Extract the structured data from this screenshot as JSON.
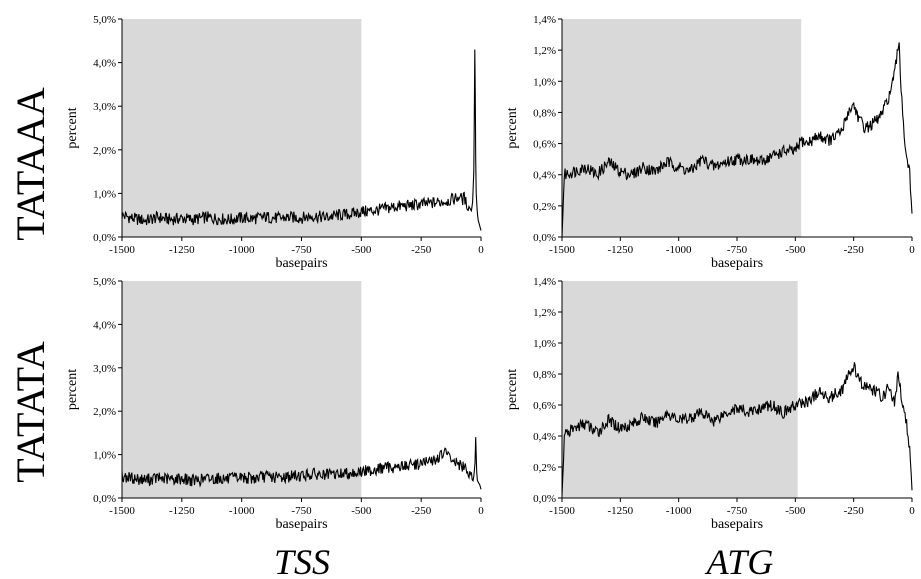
{
  "row_labels": [
    "TATAAA",
    "TATATA"
  ],
  "column_labels": [
    "TSS",
    "ATG"
  ],
  "chart_data": [
    {
      "type": "line",
      "panel": "TATAAA-TSS",
      "xlabel": "basepairs",
      "ylabel": "percent",
      "xlim": [
        -1500,
        0
      ],
      "ylim": [
        0,
        5
      ],
      "xticks": [
        -1500,
        -1250,
        -1000,
        -750,
        -500,
        -250,
        0
      ],
      "xtick_labels": [
        "-1500",
        "-1250",
        "-1000",
        "-750",
        "-500",
        "-250",
        "0"
      ],
      "yticks": [
        0,
        1,
        2,
        3,
        4,
        5
      ],
      "ytick_labels": [
        "0,0%",
        "1,0%",
        "2,0%",
        "3,0%",
        "4,0%",
        "5,0%"
      ],
      "shaded_region": [
        -1500,
        -500
      ],
      "shade_color": "#d9d9d9",
      "line_color": "#000000",
      "series": [
        {
          "values_note": "percent by position",
          "x": [
            -1500,
            -1450,
            -1400,
            -1350,
            -1300,
            -1250,
            -1200,
            -1150,
            -1100,
            -1050,
            -1000,
            -950,
            -900,
            -850,
            -800,
            -750,
            -700,
            -650,
            -600,
            -550,
            -500,
            -450,
            -400,
            -350,
            -300,
            -250,
            -200,
            -175,
            -150,
            -125,
            -100,
            -90,
            -80,
            -70,
            -60,
            -50,
            -45,
            -40,
            -35,
            -30,
            -28,
            -26,
            -24,
            -22,
            -20,
            -18,
            -16,
            -14,
            -12,
            -10,
            -5,
            0
          ],
          "y": [
            0.5,
            0.42,
            0.38,
            0.45,
            0.4,
            0.43,
            0.4,
            0.45,
            0.42,
            0.4,
            0.44,
            0.42,
            0.46,
            0.43,
            0.45,
            0.44,
            0.48,
            0.45,
            0.5,
            0.52,
            0.58,
            0.6,
            0.65,
            0.7,
            0.72,
            0.75,
            0.78,
            0.8,
            0.82,
            0.85,
            0.9,
            0.95,
            0.85,
            0.9,
            0.75,
            0.7,
            0.65,
            0.6,
            0.8,
            1.5,
            2.8,
            4.3,
            3.2,
            1.8,
            1.0,
            0.8,
            0.6,
            0.5,
            0.4,
            0.35,
            0.25,
            0.15
          ]
        }
      ]
    },
    {
      "type": "line",
      "panel": "TATAAA-ATG",
      "xlabel": "basepairs",
      "ylabel": "percent",
      "xlim": [
        -1500,
        0
      ],
      "ylim": [
        0,
        1.4
      ],
      "xticks": [
        -1500,
        -1250,
        -1000,
        -750,
        -500,
        -250,
        0
      ],
      "xtick_labels": [
        "-1500",
        "-1250",
        "-1000",
        "-750",
        "-500",
        "-250",
        "0"
      ],
      "yticks": [
        0,
        0.2,
        0.4,
        0.6,
        0.8,
        1.0,
        1.2,
        1.4
      ],
      "ytick_labels": [
        "0,0%",
        "0,2%",
        "0,4%",
        "0,6%",
        "0,8%",
        "1,0%",
        "1,2%",
        "1,4%"
      ],
      "shaded_region": [
        -1500,
        -475
      ],
      "shade_color": "#d9d9d9",
      "line_color": "#000000",
      "series": [
        {
          "x": [
            -1500,
            -1490,
            -1450,
            -1400,
            -1350,
            -1300,
            -1250,
            -1200,
            -1150,
            -1100,
            -1050,
            -1000,
            -950,
            -900,
            -850,
            -800,
            -750,
            -700,
            -650,
            -600,
            -550,
            -500,
            -475,
            -450,
            -400,
            -350,
            -300,
            -275,
            -250,
            -225,
            -200,
            -175,
            -150,
            -125,
            -100,
            -90,
            -80,
            -70,
            -60,
            -55,
            -50,
            -40,
            -30,
            -20,
            -10,
            0
          ],
          "y": [
            0.02,
            0.4,
            0.42,
            0.45,
            0.4,
            0.48,
            0.42,
            0.4,
            0.45,
            0.42,
            0.48,
            0.45,
            0.42,
            0.5,
            0.45,
            0.48,
            0.5,
            0.5,
            0.48,
            0.52,
            0.55,
            0.55,
            0.62,
            0.6,
            0.65,
            0.62,
            0.68,
            0.8,
            0.85,
            0.75,
            0.7,
            0.72,
            0.75,
            0.8,
            0.9,
            0.95,
            1.0,
            1.1,
            1.2,
            1.25,
            1.05,
            0.8,
            0.6,
            0.5,
            0.4,
            0.15
          ]
        }
      ]
    },
    {
      "type": "line",
      "panel": "TATATA-TSS",
      "xlabel": "basepairs",
      "ylabel": "percent",
      "xlim": [
        -1500,
        0
      ],
      "ylim": [
        0,
        5
      ],
      "xticks": [
        -1500,
        -1250,
        -1000,
        -750,
        -500,
        -250,
        0
      ],
      "xtick_labels": [
        "-1500",
        "-1250",
        "-1000",
        "-750",
        "-500",
        "-250",
        "0"
      ],
      "yticks": [
        0,
        1,
        2,
        3,
        4,
        5
      ],
      "ytick_labels": [
        "0,0%",
        "1,0%",
        "2,0%",
        "3,0%",
        "4,0%",
        "5,0%"
      ],
      "shaded_region": [
        -1500,
        -500
      ],
      "shade_color": "#d9d9d9",
      "line_color": "#000000",
      "series": [
        {
          "x": [
            -1500,
            -1450,
            -1400,
            -1350,
            -1300,
            -1250,
            -1200,
            -1150,
            -1100,
            -1050,
            -1000,
            -950,
            -900,
            -850,
            -800,
            -750,
            -700,
            -650,
            -600,
            -550,
            -500,
            -450,
            -400,
            -350,
            -300,
            -250,
            -200,
            -175,
            -150,
            -125,
            -100,
            -75,
            -50,
            -40,
            -30,
            -25,
            -22,
            -20,
            -18,
            -15,
            -10,
            -5,
            0
          ],
          "y": [
            0.5,
            0.45,
            0.42,
            0.46,
            0.43,
            0.45,
            0.4,
            0.44,
            0.46,
            0.43,
            0.48,
            0.45,
            0.5,
            0.47,
            0.5,
            0.52,
            0.55,
            0.52,
            0.55,
            0.58,
            0.6,
            0.65,
            0.7,
            0.72,
            0.75,
            0.8,
            0.85,
            0.95,
            1.05,
            0.9,
            0.8,
            0.7,
            0.6,
            0.55,
            0.5,
            0.8,
            1.4,
            1.0,
            0.6,
            0.4,
            0.35,
            0.3,
            0.2
          ]
        }
      ]
    },
    {
      "type": "line",
      "panel": "TATATA-ATG",
      "xlabel": "basepairs",
      "ylabel": "percent",
      "xlim": [
        -1500,
        0
      ],
      "ylim": [
        0,
        1.4
      ],
      "xticks": [
        -1500,
        -1250,
        -1000,
        -750,
        -500,
        -250,
        0
      ],
      "xtick_labels": [
        "-1500",
        "-1250",
        "-1000",
        "-750",
        "-500",
        "-250",
        "0"
      ],
      "yticks": [
        0,
        0.2,
        0.4,
        0.6,
        0.8,
        1.0,
        1.2,
        1.4
      ],
      "ytick_labels": [
        "0,0%",
        "0,2%",
        "0,4%",
        "0,6%",
        "0,8%",
        "1,0%",
        "1,2%",
        "1,4%"
      ],
      "shaded_region": [
        -1500,
        -490
      ],
      "shade_color": "#d9d9d9",
      "line_color": "#000000",
      "series": [
        {
          "x": [
            -1500,
            -1490,
            -1450,
            -1400,
            -1350,
            -1300,
            -1250,
            -1200,
            -1150,
            -1100,
            -1050,
            -1000,
            -950,
            -900,
            -850,
            -800,
            -750,
            -700,
            -650,
            -600,
            -550,
            -500,
            -450,
            -400,
            -350,
            -300,
            -275,
            -250,
            -225,
            -200,
            -175,
            -150,
            -125,
            -100,
            -75,
            -60,
            -50,
            -40,
            -30,
            -20,
            -10,
            0
          ],
          "y": [
            0.02,
            0.4,
            0.45,
            0.48,
            0.42,
            0.5,
            0.45,
            0.48,
            0.52,
            0.48,
            0.55,
            0.5,
            0.52,
            0.55,
            0.5,
            0.55,
            0.58,
            0.55,
            0.58,
            0.6,
            0.55,
            0.6,
            0.62,
            0.68,
            0.65,
            0.7,
            0.78,
            0.85,
            0.75,
            0.72,
            0.7,
            0.68,
            0.65,
            0.72,
            0.6,
            0.8,
            0.7,
            0.62,
            0.55,
            0.45,
            0.3,
            0.05
          ]
        }
      ]
    }
  ]
}
